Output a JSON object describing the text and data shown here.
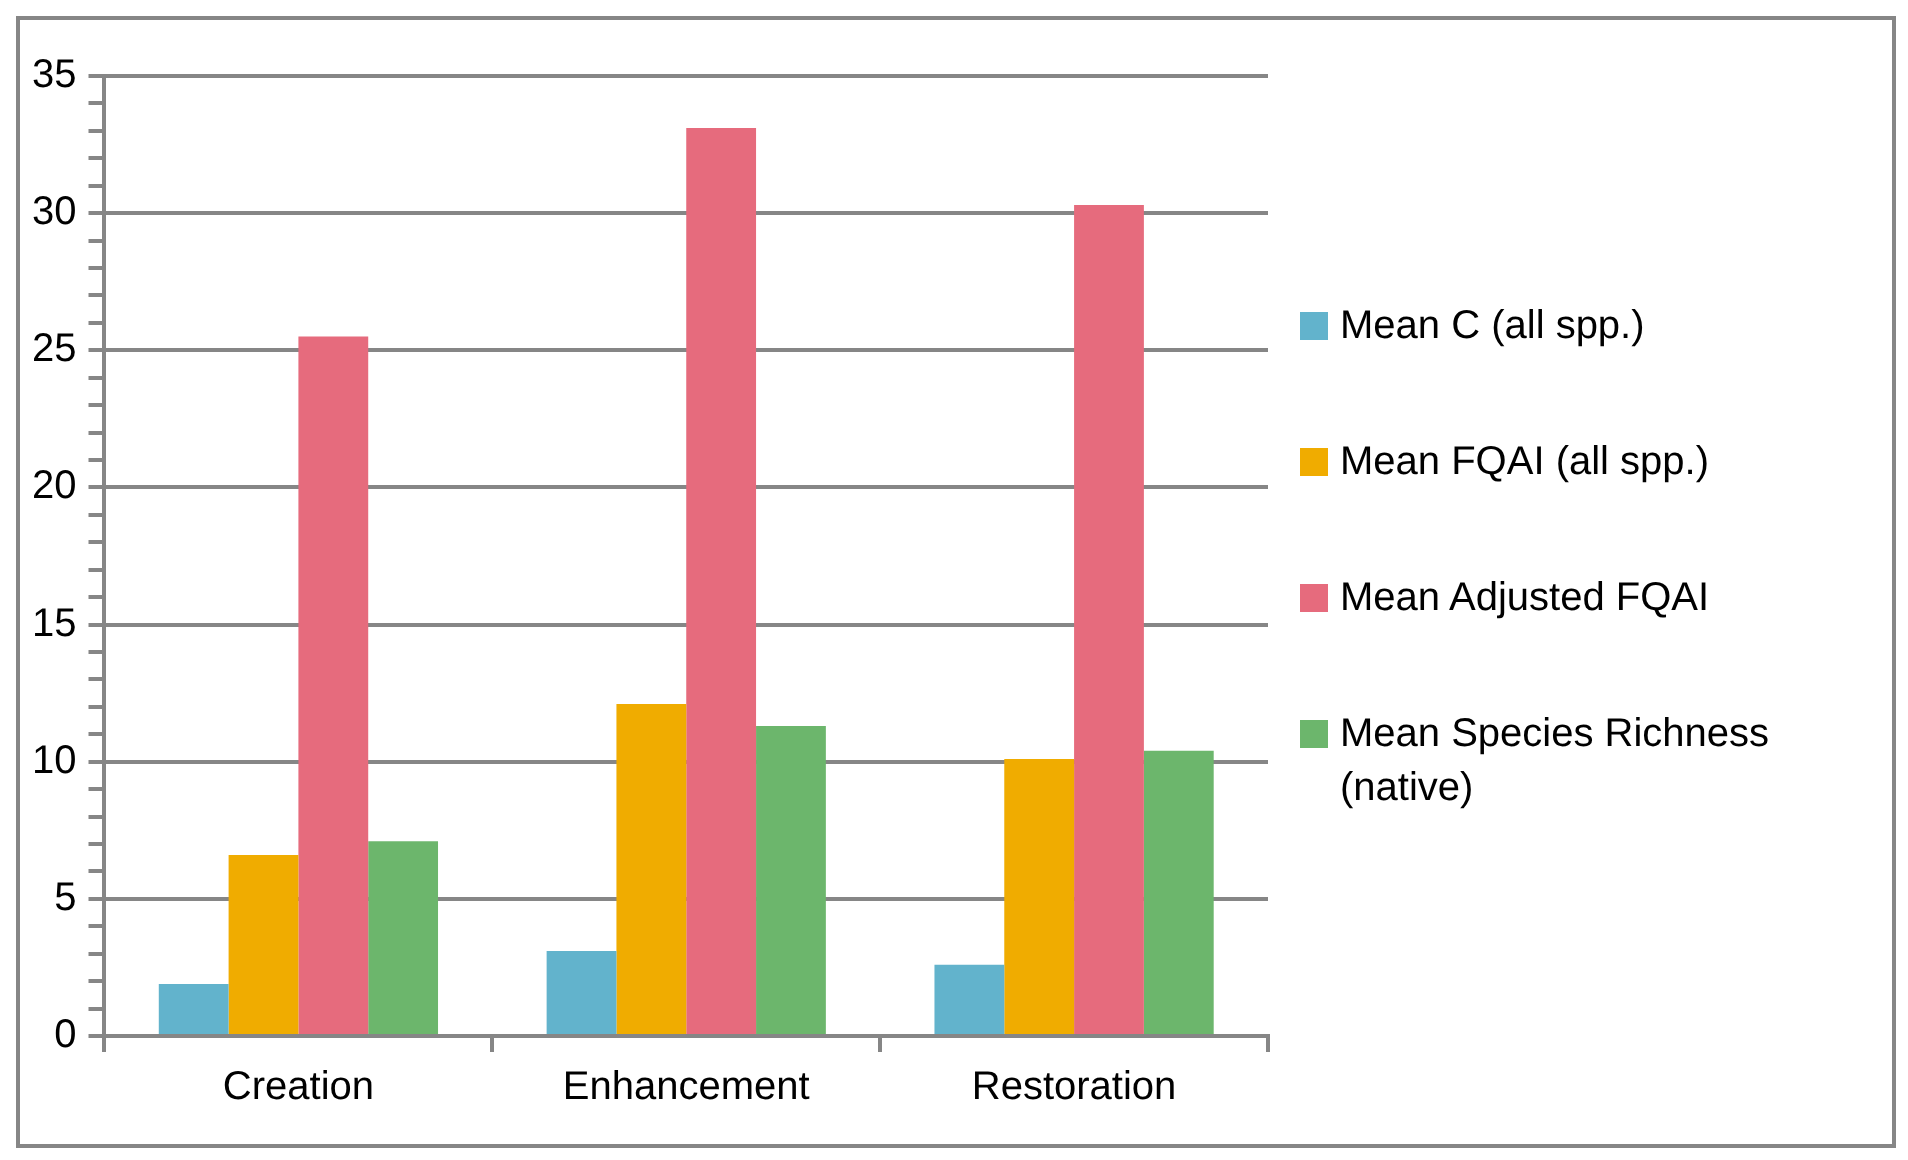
{
  "chart_data": {
    "type": "bar",
    "categories": [
      "Creation",
      "Enhancement",
      "Restoration"
    ],
    "series": [
      {
        "name": "Mean C (all spp.)",
        "color": "#62b3cc",
        "values": [
          1.9,
          3.1,
          2.6
        ]
      },
      {
        "name": "Mean FQAI (all spp.)",
        "color": "#f0ac00",
        "values": [
          6.6,
          12.1,
          10.1
        ]
      },
      {
        "name": "Mean Adjusted FQAI",
        "color": "#e66b7d",
        "values": [
          25.5,
          33.1,
          30.3
        ]
      },
      {
        "name": "Mean Species Richness (native)",
        "color": "#6cb66c",
        "values": [
          7.1,
          11.3,
          10.4
        ]
      }
    ],
    "ylim": [
      0,
      35
    ],
    "yticks": [
      0,
      {
        "value": 1,
        "label": null
      },
      {
        "value": 2,
        "label": null
      },
      {
        "value": 3,
        "label": null
      },
      {
        "value": 4,
        "label": null
      },
      5,
      {
        "value": 6,
        "label": null
      },
      {
        "value": 7,
        "label": null
      },
      {
        "value": 8,
        "label": null
      },
      {
        "value": 9,
        "label": null
      },
      10,
      {
        "value": 11,
        "label": null
      },
      {
        "value": 12,
        "label": null
      },
      {
        "value": 13,
        "label": null
      },
      {
        "value": 14,
        "label": null
      },
      15,
      {
        "value": 16,
        "label": null
      },
      {
        "value": 17,
        "label": null
      },
      {
        "value": 18,
        "label": null
      },
      {
        "value": 19,
        "label": null
      },
      20,
      {
        "value": 21,
        "label": null
      },
      {
        "value": 22,
        "label": null
      },
      {
        "value": 23,
        "label": null
      },
      {
        "value": 24,
        "label": null
      },
      25,
      {
        "value": 26,
        "label": null
      },
      {
        "value": 27,
        "label": null
      },
      {
        "value": 28,
        "label": null
      },
      {
        "value": 29,
        "label": null
      },
      30,
      {
        "value": 31,
        "label": null
      },
      {
        "value": 32,
        "label": null
      },
      {
        "value": 33,
        "label": null
      },
      {
        "value": 34,
        "label": null
      },
      35
    ],
    "grid": "y",
    "legend": "right"
  }
}
